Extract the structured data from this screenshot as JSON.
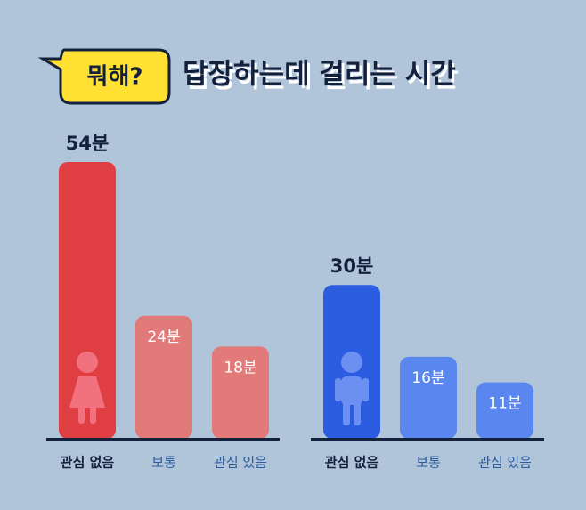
{
  "header": {
    "badge": "뭐해?",
    "title": "답장하는데 걸리는 시간"
  },
  "chart_data": [
    {
      "type": "bar",
      "categories": [
        "관심 없음",
        "보통",
        "관심 있음"
      ],
      "values": [
        54,
        24,
        18
      ],
      "value_labels": [
        "54분",
        "24분",
        "18분"
      ],
      "colors": [
        "#df3f42",
        "#e37a7a",
        "#e37a7a"
      ]
    },
    {
      "type": "bar",
      "categories": [
        "관심 없음",
        "보통",
        "관심 있음"
      ],
      "values": [
        30,
        16,
        11
      ],
      "value_labels": [
        "30분",
        "16분",
        "11분"
      ],
      "colors": [
        "#2c5de0",
        "#5a86f0",
        "#5a86f0"
      ]
    }
  ]
}
